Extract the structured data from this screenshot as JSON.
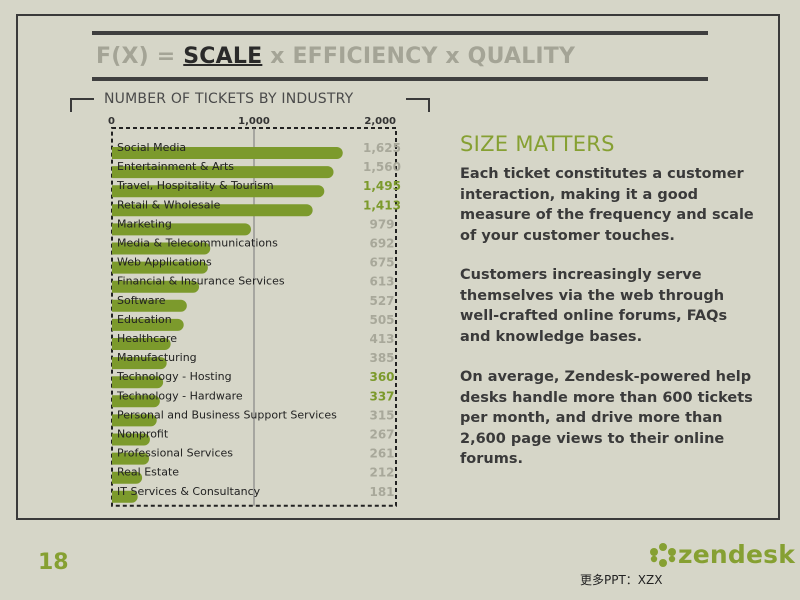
{
  "header": {
    "formula_prefix": "F(X) = ",
    "formula_scale": "SCALE",
    "formula_rest": " x EFFICIENCY x QUALITY"
  },
  "chart_heading": "NUMBER OF TICKETS BY INDUSTRY",
  "chart_data": {
    "type": "bar",
    "orientation": "horizontal",
    "title": "NUMBER OF TICKETS BY INDUSTRY",
    "xlim": [
      0,
      2000
    ],
    "x_ticks": [
      0,
      1000,
      2000
    ],
    "x_tick_labels": [
      "0",
      "1,000",
      "2,000"
    ],
    "grid": true,
    "categories": [
      "Social Media",
      "Entertainment & Arts",
      "Travel, Hospitality & Tourism",
      "Retail & Wholesale",
      "Marketing",
      "Media & Telecommunications",
      "Web Applications",
      "Financial & Insurance Services",
      "Software",
      "Education",
      "Healthcare",
      "Manufacturing",
      "Technology - Hosting",
      "Technology - Hardware",
      "Personal and Business Support Services",
      "Nonprofit",
      "Professional Services",
      "Real Estate",
      "IT Services & Consultancy"
    ],
    "values": [
      1625,
      1560,
      1495,
      1413,
      979,
      692,
      675,
      613,
      527,
      505,
      413,
      385,
      360,
      337,
      315,
      267,
      261,
      212,
      181
    ],
    "value_labels": [
      "1,625",
      "1,560",
      "1,495",
      "1,413",
      "979",
      "692",
      "675",
      "613",
      "527",
      "505",
      "413",
      "385",
      "360",
      "337",
      "315",
      "267",
      "261",
      "212",
      "181"
    ],
    "highlighted": [
      false,
      false,
      true,
      true,
      false,
      false,
      false,
      false,
      false,
      false,
      false,
      false,
      true,
      true,
      false,
      false,
      false,
      false,
      false
    ],
    "bar_color": "#7c9a2c",
    "highlight_label_color": "#7c9a2c",
    "muted_label_color": "#a8a89a"
  },
  "side": {
    "title": "SIZE MATTERS",
    "paragraphs": [
      "Each ticket constitutes a customer interaction, making it a good measure of the frequency and scale of your customer touches.",
      "Customers increasingly serve themselves via the web through well-crafted online forums, FAQs and knowledge bases.",
      "On average, Zendesk-powered help desks handle more than 600 tickets per month, and drive more than 2,600 page views to their online forums."
    ]
  },
  "footer": {
    "page_number": "18",
    "brand": "zendesk",
    "credit": "更多PPT：XZX"
  },
  "colors": {
    "background": "#d6d6c8",
    "accent": "#86a032",
    "text": "#3a3a3a"
  },
  "icons": {
    "brand_mark": "zendesk-logo-icon"
  }
}
